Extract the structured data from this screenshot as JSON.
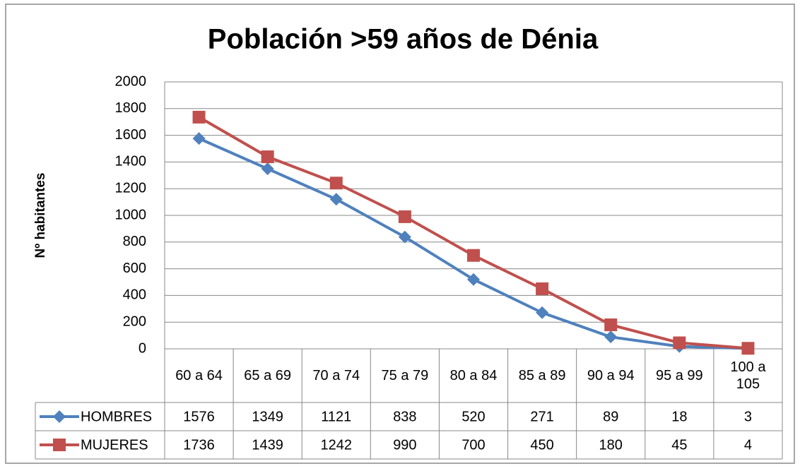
{
  "chart_data": {
    "type": "line",
    "title": "Población >59 años de Dénia",
    "y_label": "Nº habitantes",
    "categories": [
      "60 a 64",
      "65 a 69",
      "70 a 74",
      "75 a 79",
      "80 a 84",
      "85 a 89",
      "90 a 94",
      "95 a 99",
      "100 a 105"
    ],
    "series": [
      {
        "name": "HOMBRES",
        "color": "#4f81bd",
        "marker": "diamond",
        "values": [
          1576,
          1349,
          1121,
          838,
          520,
          271,
          89,
          18,
          3
        ]
      },
      {
        "name": "MUJERES",
        "color": "#c0504d",
        "marker": "square",
        "values": [
          1736,
          1439,
          1242,
          990,
          700,
          450,
          180,
          45,
          4
        ]
      }
    ],
    "ylim": [
      0,
      2000
    ],
    "yticks": [
      0,
      200,
      400,
      600,
      800,
      1000,
      1200,
      1400,
      1600,
      1800,
      2000
    ],
    "grid": true
  }
}
